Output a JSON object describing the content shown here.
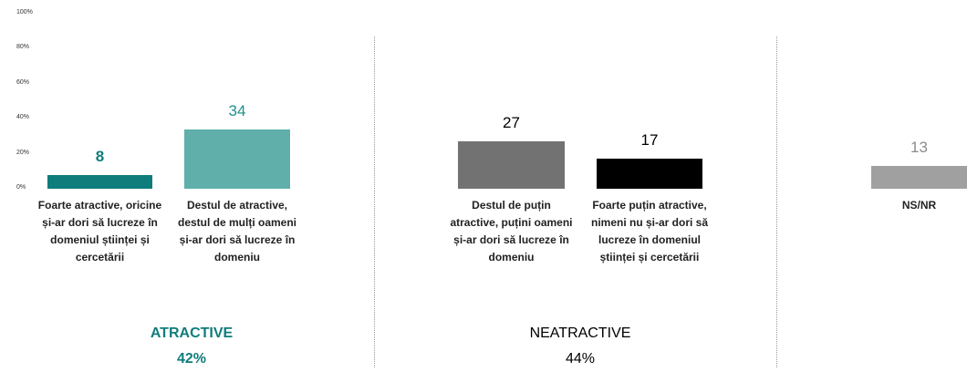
{
  "chart_data": {
    "type": "bar",
    "categories": [
      "Foarte atractive, oricine și-ar dori să lucreze în domeniul științei și cercetării",
      "Destul de atractive, destul de mulți oameni și-ar dori să lucreze în domeniu",
      "Destul de puțin atractive, puțini oameni și-ar dori să lucreze în domeniu",
      "Foarte puțin atractive, nimeni nu și-ar dori să lucreze în domeniul științei și cercetării",
      "NS/NR"
    ],
    "values": [
      8,
      34,
      27,
      17,
      13
    ],
    "colors": [
      "#0f7d7b",
      "#1f8f89",
      "#3a3a3a",
      "#000000",
      "#a0a0a0"
    ],
    "patterned": [
      false,
      true,
      true,
      false,
      false
    ],
    "value_label_colors": [
      "#0f7d7b",
      "#1f8f89",
      "#000000",
      "#000000",
      "#8c8c8c"
    ],
    "ylim": [
      0,
      100
    ],
    "yticks": [
      {
        "value": 0,
        "label": "0%"
      },
      {
        "value": 20,
        "label": "20%"
      },
      {
        "value": 40,
        "label": "40%"
      },
      {
        "value": 60,
        "label": "60%"
      },
      {
        "value": 80,
        "label": "80%"
      },
      {
        "value": 100,
        "label": "100%"
      }
    ],
    "groups": [
      {
        "name": "ATRACTIVE",
        "share": "42%",
        "color": "#0f7d7b",
        "bold": true
      },
      {
        "name": "NEATRACTIVE",
        "share": "44%",
        "color": "#000000",
        "bold": false
      }
    ]
  }
}
